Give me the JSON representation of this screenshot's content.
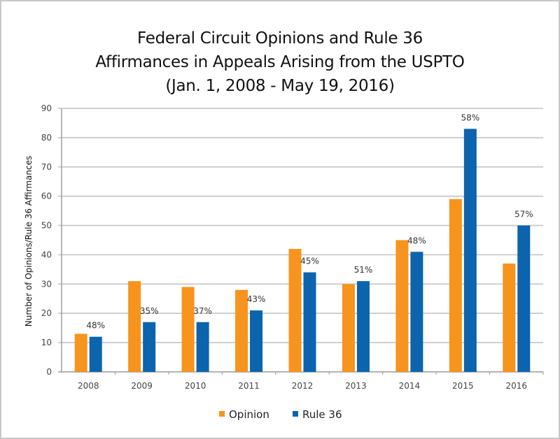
{
  "chart_data": {
    "type": "bar",
    "title_lines": [
      "Federal Circuit Opinions and Rule 36",
      "Affirmances in Appeals Arising from the USPTO",
      "(Jan. 1, 2008 - May 19, 2016)"
    ],
    "xlabel": "",
    "ylabel": "Number of Opinions/Rule 36 Affirmances",
    "ylim": [
      0,
      90
    ],
    "yticks": [
      0,
      10,
      20,
      30,
      40,
      50,
      60,
      70,
      80,
      90
    ],
    "grid": true,
    "legend_position": "bottom",
    "categories": [
      "2008",
      "2009",
      "2010",
      "2011",
      "2012",
      "2013",
      "2014",
      "2015",
      "2016"
    ],
    "series": [
      {
        "name": "Opinion",
        "color": "#F7941D",
        "values": [
          13,
          31,
          29,
          28,
          42,
          30,
          45,
          59,
          37
        ]
      },
      {
        "name": "Rule 36",
        "color": "#0B64AD",
        "values": [
          12,
          17,
          17,
          21,
          34,
          31,
          41,
          83,
          50
        ]
      }
    ],
    "annotations": [
      "48%",
      "35%",
      "37%",
      "43%",
      "45%",
      "51%",
      "48%",
      "58%",
      "57%"
    ]
  }
}
